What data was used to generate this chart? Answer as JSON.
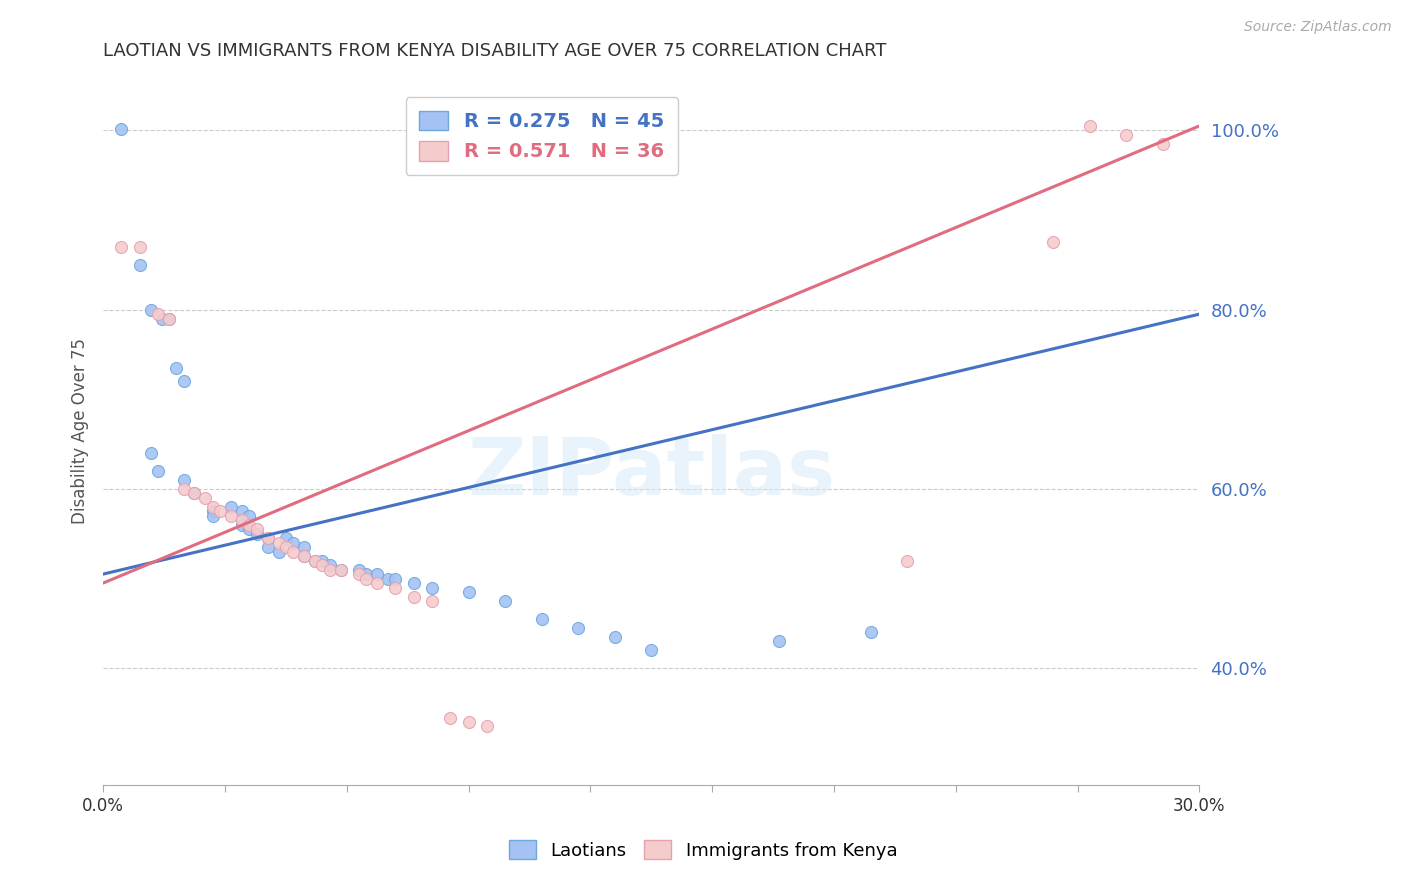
{
  "title": "LAOTIAN VS IMMIGRANTS FROM KENYA DISABILITY AGE OVER 75 CORRELATION CHART",
  "source": "Source: ZipAtlas.com",
  "ylabel": "Disability Age Over 75",
  "watermark": "ZIPatlas",
  "blue_scatter_color": "#a4c2f4",
  "blue_edge_color": "#6fa8dc",
  "pink_scatter_color": "#f4cccc",
  "pink_edge_color": "#e8a0b0",
  "trendline_blue": "#4472c4",
  "trendline_pink": "#e06c80",
  "xmin": 0.0,
  "xmax": 0.3,
  "ymin": 0.27,
  "ymax": 1.06,
  "ytick_vals": [
    0.4,
    0.6,
    0.8,
    1.0
  ],
  "ytick_labels": [
    "40.0%",
    "60.0%",
    "80.0%",
    "100.0%"
  ],
  "legend_r_n": [
    {
      "R": "0.275",
      "N": "45",
      "color": "#4472c4"
    },
    {
      "R": "0.571",
      "N": "36",
      "color": "#e06c80"
    }
  ],
  "laotians_x": [
    0.005,
    0.01,
    0.013,
    0.016,
    0.018,
    0.02,
    0.022,
    0.013,
    0.015,
    0.022,
    0.025,
    0.03,
    0.03,
    0.035,
    0.038,
    0.04,
    0.038,
    0.04,
    0.042,
    0.045,
    0.045,
    0.048,
    0.05,
    0.052,
    0.055,
    0.055,
    0.058,
    0.06,
    0.062,
    0.065,
    0.07,
    0.072,
    0.075,
    0.078,
    0.08,
    0.085,
    0.09,
    0.1,
    0.11,
    0.12,
    0.13,
    0.14,
    0.15,
    0.185,
    0.21
  ],
  "laotians_y": [
    1.002,
    0.85,
    0.8,
    0.79,
    0.79,
    0.735,
    0.72,
    0.64,
    0.62,
    0.61,
    0.595,
    0.575,
    0.57,
    0.58,
    0.575,
    0.57,
    0.56,
    0.555,
    0.55,
    0.545,
    0.535,
    0.53,
    0.545,
    0.54,
    0.535,
    0.525,
    0.52,
    0.52,
    0.515,
    0.51,
    0.51,
    0.505,
    0.505,
    0.5,
    0.5,
    0.495,
    0.49,
    0.485,
    0.475,
    0.455,
    0.445,
    0.435,
    0.42,
    0.43,
    0.44
  ],
  "kenya_x": [
    0.005,
    0.01,
    0.015,
    0.018,
    0.022,
    0.025,
    0.028,
    0.03,
    0.032,
    0.035,
    0.038,
    0.04,
    0.042,
    0.045,
    0.048,
    0.05,
    0.052,
    0.055,
    0.058,
    0.06,
    0.062,
    0.065,
    0.07,
    0.072,
    0.075,
    0.08,
    0.085,
    0.09,
    0.095,
    0.1,
    0.105,
    0.22,
    0.26,
    0.27,
    0.28,
    0.29
  ],
  "kenya_y": [
    0.87,
    0.87,
    0.795,
    0.79,
    0.6,
    0.595,
    0.59,
    0.58,
    0.575,
    0.57,
    0.565,
    0.56,
    0.555,
    0.545,
    0.54,
    0.535,
    0.53,
    0.525,
    0.52,
    0.515,
    0.51,
    0.51,
    0.505,
    0.5,
    0.495,
    0.49,
    0.48,
    0.475,
    0.345,
    0.34,
    0.335,
    0.52,
    0.875,
    1.005,
    0.995,
    0.985
  ],
  "blue_trend_x": [
    0.0,
    0.3
  ],
  "blue_trend_y": [
    0.505,
    0.795
  ],
  "pink_trend_x": [
    0.0,
    0.3
  ],
  "pink_trend_y": [
    0.495,
    1.005
  ]
}
